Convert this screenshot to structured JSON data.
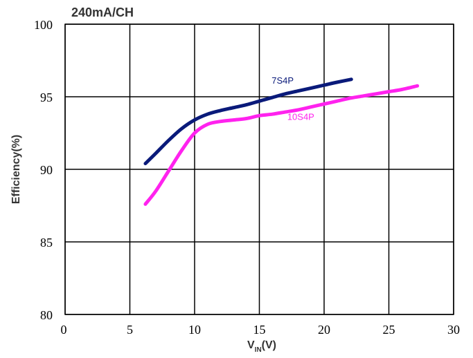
{
  "chart_data": {
    "type": "line",
    "title": "240mA/CH",
    "ylabel": "Efficiency(%)",
    "xlabel": {
      "main": "V",
      "sub": "IN",
      "suffix": "(V)"
    },
    "xlim": [
      0,
      30
    ],
    "ylim": [
      80,
      100
    ],
    "xticks": [
      "0",
      "5",
      "10",
      "15",
      "20",
      "25",
      "30"
    ],
    "yticks": [
      "80",
      "85",
      "90",
      "95",
      "100"
    ],
    "grid": true,
    "series": [
      {
        "name": "7S4P",
        "color": "#0a1a7a",
        "x": [
          6.2,
          7,
          8,
          9,
          10,
          11,
          12,
          13,
          14,
          15,
          16,
          17,
          18,
          19,
          20,
          21,
          22.1
        ],
        "y": [
          90.4,
          91.1,
          92.0,
          92.8,
          93.4,
          93.8,
          94.05,
          94.25,
          94.45,
          94.7,
          94.95,
          95.2,
          95.4,
          95.6,
          95.8,
          96.0,
          96.2
        ]
      },
      {
        "name": "10S4P",
        "color": "#ff22ee",
        "x": [
          6.2,
          7,
          8,
          9,
          10,
          11,
          12,
          13,
          14,
          15,
          16,
          17,
          18,
          19,
          20,
          21,
          22,
          23,
          24,
          25,
          26,
          27.2
        ],
        "y": [
          87.6,
          88.5,
          89.9,
          91.3,
          92.5,
          93.1,
          93.3,
          93.4,
          93.5,
          93.7,
          93.8,
          93.95,
          94.1,
          94.3,
          94.5,
          94.7,
          94.9,
          95.05,
          95.2,
          95.35,
          95.5,
          95.75
        ]
      }
    ]
  }
}
